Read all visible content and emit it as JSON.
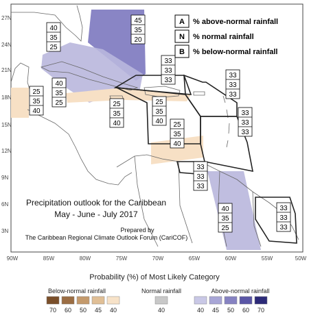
{
  "map": {
    "title_line1": "Precipitation outlook for the Caribbean",
    "title_line2": "May - June - July 2017",
    "prepared_by": "Prepared by",
    "forum": "The Caribbean Regional Climate Outlook Forum (CariCOF)",
    "lat_labels": [
      "27N",
      "24N",
      "21N",
      "18N",
      "15N",
      "12N",
      "9N",
      "6N",
      "3N"
    ],
    "lon_labels": [
      "90W",
      "85W",
      "80W",
      "75W",
      "70W",
      "65W",
      "60W",
      "55W",
      "50W"
    ]
  },
  "key": [
    {
      "letter": "A",
      "text": "% above-normal rainfall"
    },
    {
      "letter": "N",
      "text": "% normal rainfall"
    },
    {
      "letter": "B",
      "text": "% below-normal rainfall"
    }
  ],
  "boxes": [
    {
      "id": "bahamas",
      "values": [
        "45",
        "35",
        "20"
      ]
    },
    {
      "id": "florida",
      "values": [
        "40",
        "35",
        "25"
      ]
    },
    {
      "id": "cuba",
      "values": [
        "40",
        "35",
        "25"
      ]
    },
    {
      "id": "belize",
      "values": [
        "25",
        "35",
        "40"
      ]
    },
    {
      "id": "jamaica",
      "values": [
        "25",
        "35",
        "40"
      ]
    },
    {
      "id": "hispaniola",
      "values": [
        "25",
        "35",
        "40"
      ]
    },
    {
      "id": "turks",
      "values": [
        "33",
        "33",
        "33"
      ]
    },
    {
      "id": "leewards",
      "values": [
        "33",
        "33",
        "33"
      ]
    },
    {
      "id": "windwards",
      "values": [
        "33",
        "33",
        "33"
      ]
    },
    {
      "id": "abc",
      "values": [
        "25",
        "35",
        "40"
      ]
    },
    {
      "id": "trinidad",
      "values": [
        "33",
        "33",
        "33"
      ]
    },
    {
      "id": "guyana",
      "values": [
        "40",
        "35",
        "25"
      ]
    },
    {
      "id": "suriname",
      "values": [
        "33",
        "33",
        "33"
      ]
    }
  ],
  "legend": {
    "title": "Probability (%) of Most Likely Category",
    "below_label": "Below-normal rainfall",
    "normal_label": "Normal rainfall",
    "above_label": "Above-normal rainfall",
    "below_ticks": [
      "70",
      "60",
      "50",
      "45",
      "40"
    ],
    "normal_ticks": [
      "40"
    ],
    "above_ticks": [
      "40",
      "45",
      "50",
      "60",
      "70"
    ],
    "below_colors": [
      "#7a4f2a",
      "#9b6d43",
      "#c49a6c",
      "#e0bf96",
      "#f7e2c8"
    ],
    "normal_color": "#c8c8c8",
    "above_colors": [
      "#c9c8e6",
      "#a8a6d6",
      "#8682c2",
      "#5a56a6",
      "#2c2a78"
    ]
  }
}
